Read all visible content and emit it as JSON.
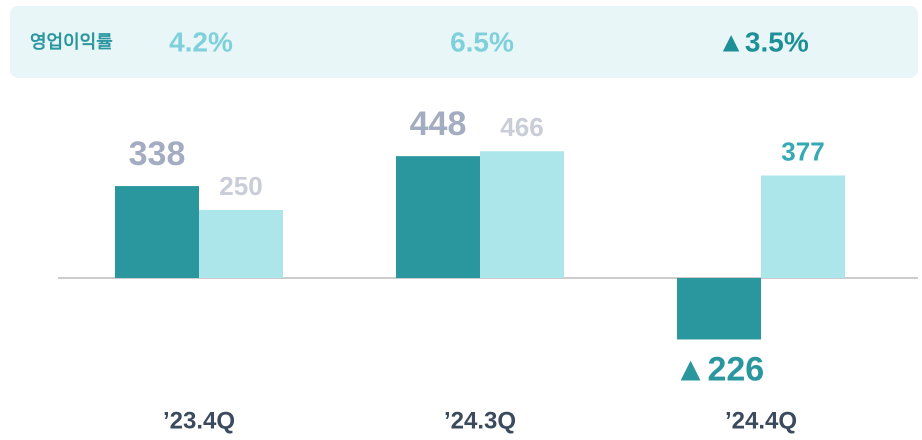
{
  "chart_data": {
    "type": "bar",
    "margin_label": "영업이익률",
    "margin_values": [
      4.2,
      6.5,
      -3.5
    ],
    "margin_value_labels": [
      "4.2%",
      "6.5%",
      "▲3.5%"
    ],
    "margin_colors": [
      "#7fd0db",
      "#7fd0db",
      "#1d8f96"
    ],
    "categories": [
      "’23.4Q",
      "’24.3Q",
      "’24.4Q"
    ],
    "series": [
      {
        "color": "#2a979f",
        "values": [
          338,
          448,
          -226
        ],
        "value_labels": [
          "338",
          "448",
          "▲226"
        ],
        "label_colors": [
          "#a3acc0",
          "#a3acc0",
          "#2a979f"
        ]
      },
      {
        "color": "#ade6ea",
        "values": [
          250,
          466,
          377
        ],
        "label_colors": [
          "#c8cdd8",
          "#c8cdd8",
          "#35aab5"
        ]
      }
    ]
  }
}
